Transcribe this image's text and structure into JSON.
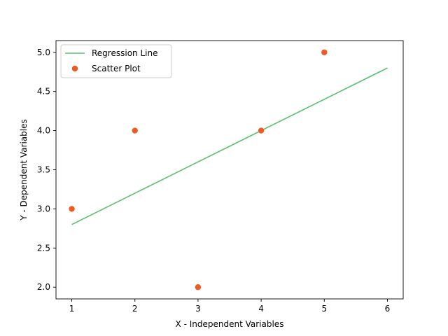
{
  "chart_data": {
    "type": "scatter",
    "title": "",
    "xlabel": "X - Independent Variables",
    "ylabel": "Y - Dependent Variables",
    "xlim": [
      0.75,
      6.25
    ],
    "ylim": [
      1.85,
      5.15
    ],
    "x_ticks": [
      1,
      2,
      3,
      4,
      5,
      6
    ],
    "y_ticks": [
      2.0,
      2.5,
      3.0,
      3.5,
      4.0,
      4.5,
      5.0
    ],
    "x_tick_labels": [
      "1",
      "2",
      "3",
      "4",
      "5",
      "6"
    ],
    "y_tick_labels": [
      "2.0",
      "2.5",
      "3.0",
      "3.5",
      "4.0",
      "4.5",
      "5.0"
    ],
    "grid": false,
    "legend_position": "top-left",
    "series": [
      {
        "name": "Regression Line",
        "kind": "line",
        "color": "#5cbf6e",
        "x": [
          1,
          6
        ],
        "y": [
          2.8,
          4.8
        ]
      },
      {
        "name": "Scatter Plot",
        "kind": "scatter",
        "color": "#ee5a24",
        "x": [
          1,
          2,
          3,
          4,
          5
        ],
        "y": [
          3,
          4,
          2,
          4,
          5
        ]
      }
    ]
  }
}
